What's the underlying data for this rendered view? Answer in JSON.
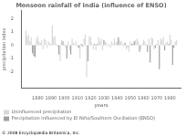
{
  "chart_data": {
    "type": "bar",
    "title": "Monsoon rainfall of India (influence of ENSO)",
    "xlabel": "years",
    "ylabel": "precipitation index",
    "annotations": [
      "© 2008 Encyclopædia Britannica, Inc."
    ],
    "x": [
      1871,
      1872,
      1873,
      1874,
      1875,
      1876,
      1877,
      1878,
      1879,
      1880,
      1881,
      1882,
      1883,
      1884,
      1885,
      1886,
      1887,
      1888,
      1889,
      1890,
      1891,
      1892,
      1893,
      1894,
      1895,
      1896,
      1897,
      1898,
      1899,
      1900,
      1901,
      1902,
      1903,
      1904,
      1905,
      1906,
      1907,
      1908,
      1909,
      1910,
      1911,
      1912,
      1913,
      1914,
      1915,
      1916,
      1917,
      1918,
      1919,
      1920,
      1921,
      1922,
      1923,
      1924,
      1925,
      1926,
      1927,
      1928,
      1929,
      1930,
      1931,
      1932,
      1933,
      1934,
      1935,
      1936,
      1937,
      1938,
      1939,
      1940,
      1941,
      1942,
      1943,
      1944,
      1945,
      1946,
      1947,
      1948,
      1949,
      1950,
      1951,
      1952,
      1953,
      1954,
      1955,
      1956,
      1957,
      1958,
      1959,
      1960,
      1961,
      1962,
      1963,
      1964,
      1965,
      1966,
      1967,
      1968,
      1969,
      1970,
      1971,
      1972,
      1973,
      1974,
      1975,
      1976,
      1977,
      1978,
      1979,
      1980,
      1981,
      1982,
      1983,
      1984,
      1985
    ],
    "series": [
      {
        "name": "Uninfluenced precipitation",
        "color": "#d8d8d8",
        "values": [
          1.1,
          0.7,
          0.8,
          0.3,
          0.6,
          null,
          null,
          null,
          0.5,
          0.7,
          0.3,
          0.2,
          0.4,
          -0.3,
          0.5,
          0.4,
          -0.2,
          0.3,
          0.2,
          0.1,
          1.5,
          0.6,
          0.7,
          0.1,
          -0.1,
          null,
          -1.2,
          0.4,
          null,
          0.1,
          -0.2,
          null,
          0.3,
          -0.4,
          null,
          0.5,
          0.2,
          0.1,
          0.3,
          -0.1,
          null,
          -1.0,
          null,
          null,
          0.5,
          0.8,
          -2.4,
          null,
          0.7,
          0.6,
          0.2,
          -0.3,
          null,
          -0.4,
          null,
          0.6,
          0.3,
          0.5,
          -0.4,
          null,
          0.3,
          0.2,
          -0.1,
          0.1,
          -0.2,
          0.3,
          0.1,
          0.5,
          0.2,
          0.3,
          null,
          0.4,
          0.3,
          0.2,
          -0.1,
          null,
          -0.3,
          -0.2,
          -0.5,
          0.3,
          null,
          0.2,
          null,
          0.4,
          0.5,
          0.3,
          null,
          -0.3,
          0.1,
          0.4,
          0.3,
          0.1,
          null,
          0.5,
          null,
          0.6,
          0.5,
          -0.3,
          null,
          0.1,
          0.4,
          null,
          0.5,
          0.4,
          0.6,
          null,
          0.2,
          0.3,
          null,
          0.8,
          0.4,
          null,
          null,
          0.3,
          0.4
        ]
      },
      {
        "name": "Precipitation influenced by El Niño/Southern Oscillation (ENSO)",
        "color": "#a0a0a0",
        "values": [
          null,
          null,
          null,
          null,
          null,
          -0.6,
          -0.8,
          -0.9,
          null,
          null,
          null,
          null,
          null,
          null,
          null,
          null,
          null,
          null,
          null,
          null,
          null,
          null,
          null,
          null,
          null,
          -0.7,
          null,
          null,
          0.3,
          null,
          null,
          -1.0,
          null,
          null,
          -0.7,
          null,
          null,
          null,
          null,
          null,
          -0.2,
          null,
          0.1,
          -0.1,
          null,
          null,
          null,
          -1.2,
          null,
          null,
          null,
          null,
          0.1,
          null,
          0.1,
          null,
          null,
          null,
          null,
          0.4,
          null,
          null,
          null,
          null,
          null,
          null,
          null,
          null,
          null,
          null,
          0.6,
          null,
          null,
          null,
          null,
          0.2,
          null,
          null,
          null,
          null,
          0.1,
          null,
          0.3,
          null,
          null,
          null,
          -0.5,
          null,
          null,
          null,
          null,
          null,
          -0.5,
          null,
          -1.3,
          null,
          null,
          null,
          -0.2,
          null,
          null,
          -1.8,
          null,
          null,
          null,
          -0.4,
          null,
          null,
          0.1,
          null,
          null,
          -1.5,
          -0.2,
          null,
          null
        ]
      }
    ],
    "xlim": [
      1868,
      1988
    ],
    "xticks": [
      1880,
      1890,
      1900,
      1910,
      1920,
      1930,
      1940,
      1950,
      1960,
      1970,
      1980
    ],
    "ylim": [
      -3.2,
      2.6
    ],
    "yticks": [
      -2,
      -1,
      0,
      1,
      2
    ],
    "grid": false,
    "legend": "bottom"
  }
}
